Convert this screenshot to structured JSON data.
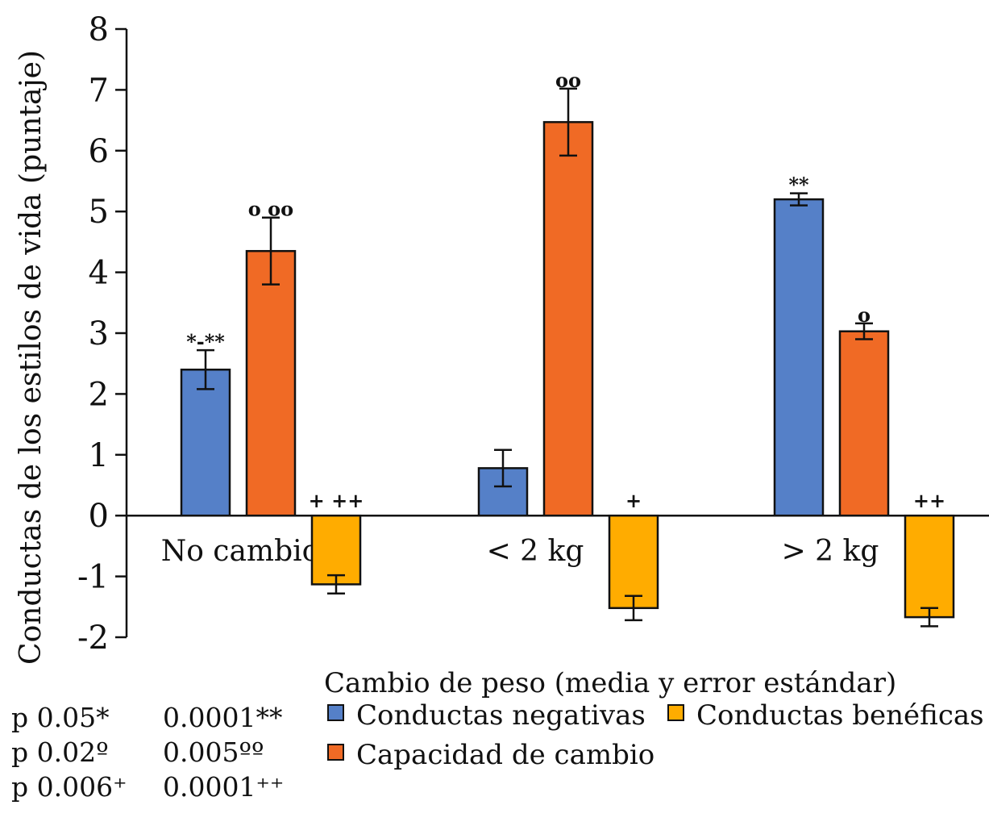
{
  "chart_data": {
    "type": "bar",
    "title": "",
    "xlabel": "Cambio de peso (media y error estándar)",
    "ylabel": "Conductas de los estilos de vida (puntaje)",
    "ylim": [
      -2,
      8
    ],
    "yticks": [
      -2,
      -1,
      0,
      1,
      2,
      3,
      4,
      5,
      6,
      7,
      8
    ],
    "grid": false,
    "legend_placement": "bottom",
    "categories": [
      "No cambio",
      "< 2 kg",
      "> 2 kg"
    ],
    "series": [
      {
        "name": "Conductas negativas",
        "color": "#5580C8",
        "values": [
          2.4,
          0.78,
          5.2
        ],
        "errors": [
          0.32,
          0.3,
          0.1
        ],
        "annotations": [
          "*-**",
          "",
          "**"
        ]
      },
      {
        "name": "Capacidad de cambio",
        "color": "#F06A25",
        "values": [
          4.35,
          6.47,
          3.03
        ],
        "errors": [
          0.55,
          0.55,
          0.13
        ],
        "annotations": [
          "o oo",
          "oo",
          "o"
        ]
      },
      {
        "name": "Conductas benéficas",
        "color": "#FFAC00",
        "values": [
          -1.13,
          -1.52,
          -1.67
        ],
        "errors": [
          0.15,
          0.2,
          0.15
        ],
        "annotations": [
          "+ ++",
          "+",
          "++"
        ]
      }
    ]
  },
  "notes": [
    [
      "p 0.05*",
      "0.0001**"
    ],
    [
      "p 0.02º",
      "0.005ºº"
    ],
    [
      "p 0.006⁺",
      "0.0001⁺⁺"
    ]
  ]
}
